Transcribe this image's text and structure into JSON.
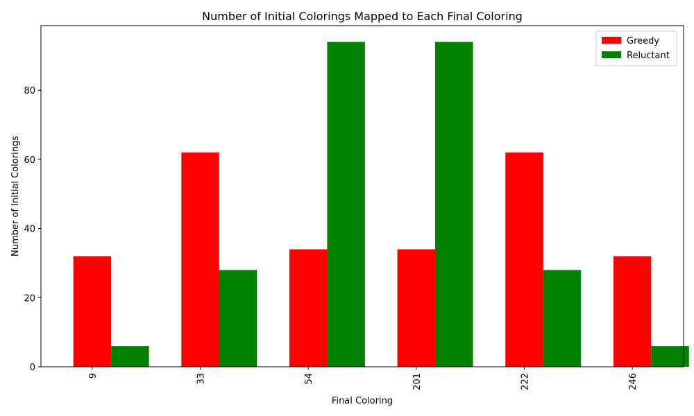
{
  "chart_data": {
    "type": "bar",
    "title": "Number of Initial Colorings Mapped to Each Final Coloring",
    "xlabel": "Final Coloring",
    "ylabel": "Number of Initial Colorings",
    "categories": [
      "9",
      "33",
      "54",
      "201",
      "222",
      "246"
    ],
    "series": [
      {
        "name": "Greedy",
        "color": "#ff0000",
        "values": [
          32,
          62,
          34,
          34,
          62,
          32
        ]
      },
      {
        "name": "Reluctant",
        "color": "#008000",
        "values": [
          6,
          28,
          94,
          94,
          28,
          6
        ]
      }
    ],
    "ylim": [
      0,
      98.7
    ],
    "yticks": [
      0,
      20,
      40,
      60,
      80
    ],
    "legend_position": "top-right",
    "grid": false
  }
}
